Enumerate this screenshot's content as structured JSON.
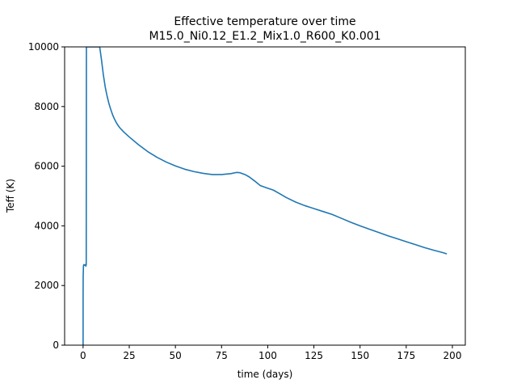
{
  "chart_data": {
    "type": "line",
    "title": "Effective temperature over time",
    "subtitle": "M15.0_Ni0.12_E1.2_Mix1.0_R600_K0.001",
    "xlabel": "time (days)",
    "ylabel": "Teff (K)",
    "xlim": [
      -10.0,
      207.0
    ],
    "ylim": [
      0,
      10000
    ],
    "xticks": [
      0,
      25,
      50,
      75,
      100,
      125,
      150,
      175,
      200
    ],
    "xtick_labels": [
      "0",
      "25",
      "50",
      "75",
      "100",
      "125",
      "150",
      "175",
      "200"
    ],
    "yticks": [
      0,
      2000,
      4000,
      6000,
      8000,
      10000
    ],
    "ytick_labels": [
      "0",
      "2000",
      "4000",
      "6000",
      "8000",
      "10000"
    ],
    "grid": false,
    "legend": "none",
    "line_color": "#1f77b4",
    "series": [
      {
        "x": [
          0.0,
          0.0,
          0.05,
          0.2,
          0.4,
          0.8,
          1.2,
          1.5,
          1.7,
          1.8,
          9.0,
          10.0,
          11.0,
          12.0,
          13.0,
          14.0,
          15.0,
          16.0,
          17.0,
          18.0,
          19.0,
          20.0,
          22.0,
          25.0,
          30.0,
          35.0,
          40.0,
          45.0,
          50.0,
          55.0,
          60.0,
          65.0,
          70.0,
          75.0,
          80.0,
          83.0,
          85.0,
          88.0,
          90.0,
          93.0,
          96.0,
          100.0,
          103.0,
          107.0,
          110.0,
          115.0,
          120.0,
          125.0,
          130.0,
          135.0,
          140.0,
          145.0,
          150.0,
          155.0,
          160.0,
          165.0,
          170.0,
          175.0,
          180.0,
          185.0,
          190.0,
          195.0,
          197.0
        ],
        "y": [
          0,
          1500,
          2300,
          2650,
          2700,
          2680,
          2700,
          2650,
          2700,
          10000,
          10000,
          9550,
          9050,
          8650,
          8350,
          8100,
          7900,
          7720,
          7580,
          7460,
          7360,
          7280,
          7150,
          6980,
          6720,
          6490,
          6300,
          6140,
          6010,
          5900,
          5820,
          5760,
          5720,
          5720,
          5750,
          5790,
          5780,
          5710,
          5640,
          5500,
          5350,
          5260,
          5200,
          5060,
          4950,
          4800,
          4680,
          4580,
          4480,
          4380,
          4250,
          4120,
          4000,
          3890,
          3780,
          3670,
          3570,
          3470,
          3370,
          3270,
          3180,
          3100,
          3060
        ]
      }
    ]
  }
}
